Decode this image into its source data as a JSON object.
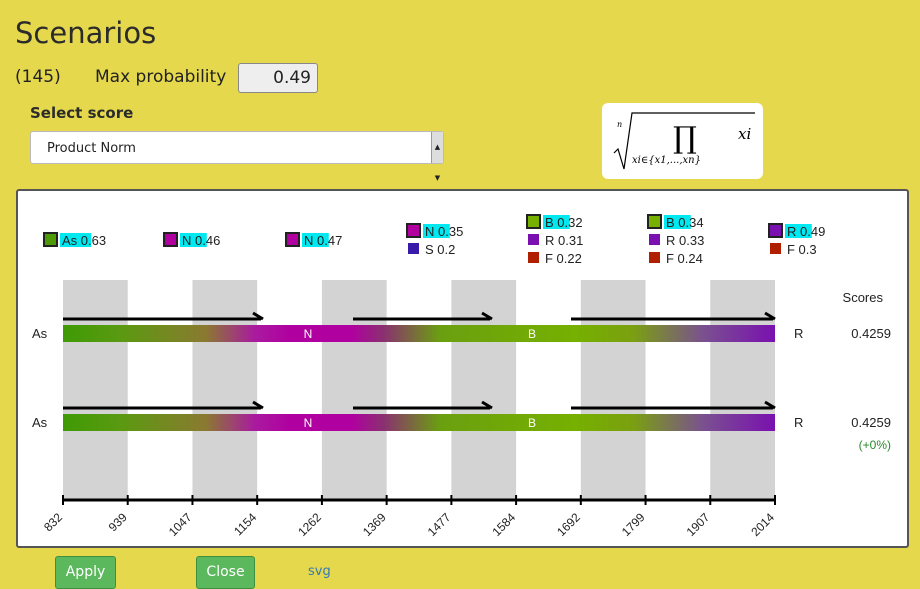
{
  "title": "Scenarios",
  "count": "(145)",
  "max_probability": {
    "label": "Max probability",
    "value": "0.49"
  },
  "select_score": {
    "label": "Select score",
    "value": "Product Norm"
  },
  "formula": {
    "root_index": "n",
    "product_symbol": "∏",
    "subscript": "xi∈{x1,...,xn}",
    "operand": "xi"
  },
  "legend": [
    {
      "entries": [
        {
          "label": "As 0.63",
          "color": "#4e9a06"
        }
      ]
    },
    {
      "entries": [
        {
          "label": "N 0.46",
          "color": "#b000a0"
        }
      ]
    },
    {
      "entries": [
        {
          "label": "N 0.47",
          "color": "#b000a0"
        }
      ]
    },
    {
      "entries": [
        {
          "label": "N 0.35",
          "color": "#b000a0"
        },
        {
          "label": "S 0.2",
          "color": "#3a1aa8"
        }
      ]
    },
    {
      "entries": [
        {
          "label": "B 0.32",
          "color": "#76b000"
        },
        {
          "label": "R 0.31",
          "color": "#7a10b0"
        },
        {
          "label": "F 0.22",
          "color": "#b02000"
        }
      ]
    },
    {
      "entries": [
        {
          "label": "B 0.34",
          "color": "#76b000"
        },
        {
          "label": "R 0.33",
          "color": "#7a10b0"
        },
        {
          "label": "F 0.24",
          "color": "#b02000"
        }
      ]
    },
    {
      "entries": [
        {
          "label": "R 0.49",
          "color": "#7a10b0"
        },
        {
          "label": "F 0.3",
          "color": "#b02000"
        }
      ]
    }
  ],
  "scores_header": "Scores",
  "scenarios": [
    {
      "start": "As",
      "end": "R",
      "segments": [
        "N",
        "B"
      ],
      "score": "0.4259",
      "delta": ""
    },
    {
      "start": "As",
      "end": "R",
      "segments": [
        "N",
        "B"
      ],
      "score": "0.4259",
      "delta": "(+0%)"
    }
  ],
  "axis_ticks": [
    "832",
    "939",
    "1047",
    "1154",
    "1262",
    "1369",
    "1477",
    "1584",
    "1692",
    "1799",
    "1907",
    "2014"
  ],
  "colors": {
    "as": "#4e9a06",
    "n": "#b000a0",
    "b": "#76b000",
    "r": "#7a10b0",
    "highlight": "#00e8f0",
    "shade": "#d3d3d3"
  },
  "buttons": {
    "apply": "Apply",
    "close": "Close",
    "svg": "svg"
  }
}
